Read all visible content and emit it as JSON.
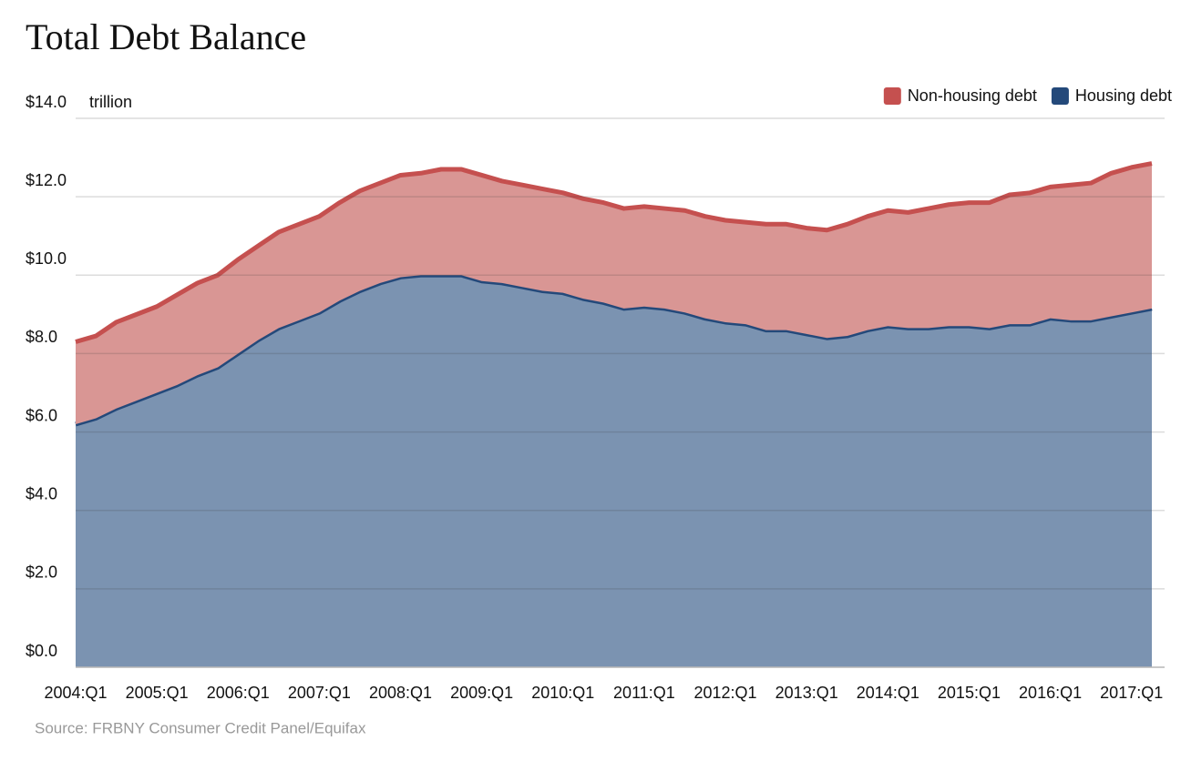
{
  "chart_data": {
    "type": "stacked-area",
    "title": "Total Debt Balance",
    "y_label": "trillion",
    "source": "Source: FRBNY Consumer Credit Panel/Equifax",
    "categories": [
      "2004:Q1",
      null,
      null,
      null,
      "2005:Q1",
      null,
      null,
      null,
      "2006:Q1",
      null,
      null,
      null,
      "2007:Q1",
      null,
      null,
      null,
      "2008:Q1",
      null,
      null,
      null,
      "2009:Q1",
      null,
      null,
      null,
      "2010:Q1",
      null,
      null,
      null,
      "2011:Q1",
      null,
      null,
      null,
      "2012:Q1",
      null,
      null,
      null,
      "2013:Q1",
      null,
      null,
      null,
      "2014:Q1",
      null,
      null,
      null,
      "2015:Q1",
      null,
      null,
      null,
      "2016:Q1",
      null,
      null,
      null,
      "2017:Q1",
      null
    ],
    "series": [
      {
        "name": "Non-housing debt",
        "color": "#c5504f",
        "fill": "#d99694",
        "values": [
          2.1,
          2.1,
          2.2,
          2.2,
          2.2,
          2.3,
          2.35,
          2.35,
          2.4,
          2.4,
          2.45,
          2.45,
          2.45,
          2.5,
          2.55,
          2.55,
          2.6,
          2.6,
          2.7,
          2.7,
          2.7,
          2.6,
          2.6,
          2.6,
          2.55,
          2.55,
          2.55,
          2.55,
          2.55,
          2.55,
          2.6,
          2.6,
          2.6,
          2.6,
          2.7,
          2.7,
          2.7,
          2.75,
          2.85,
          2.9,
          2.95,
          2.95,
          3.05,
          3.1,
          3.15,
          3.2,
          3.3,
          3.35,
          3.35,
          3.45,
          3.5,
          3.65,
          3.7,
          3.7
        ]
      },
      {
        "name": "Housing debt",
        "color": "#24497a",
        "fill": "#7b93b1",
        "values": [
          6.2,
          6.35,
          6.6,
          6.8,
          7.0,
          7.2,
          7.45,
          7.65,
          8.0,
          8.35,
          8.65,
          8.85,
          9.05,
          9.35,
          9.6,
          9.8,
          9.95,
          10.0,
          10.0,
          10.0,
          9.85,
          9.8,
          9.7,
          9.6,
          9.55,
          9.4,
          9.3,
          9.15,
          9.2,
          9.15,
          9.05,
          8.9,
          8.8,
          8.75,
          8.6,
          8.6,
          8.5,
          8.4,
          8.45,
          8.6,
          8.7,
          8.65,
          8.65,
          8.7,
          8.7,
          8.65,
          8.75,
          8.75,
          8.9,
          8.85,
          8.85,
          8.95,
          9.05,
          9.15
        ]
      }
    ],
    "ylim": [
      0,
      14
    ],
    "yticks": [
      {
        "value": 0,
        "label": "$0.0"
      },
      {
        "value": 2,
        "label": "$2.0"
      },
      {
        "value": 4,
        "label": "$4.0"
      },
      {
        "value": 6,
        "label": "$6.0"
      },
      {
        "value": 8,
        "label": "$8.0"
      },
      {
        "value": 10,
        "label": "$10.0"
      },
      {
        "value": 12,
        "label": "$12.0"
      },
      {
        "value": 14,
        "label": "$14.0"
      }
    ],
    "grid": true,
    "legend": "top-right"
  }
}
